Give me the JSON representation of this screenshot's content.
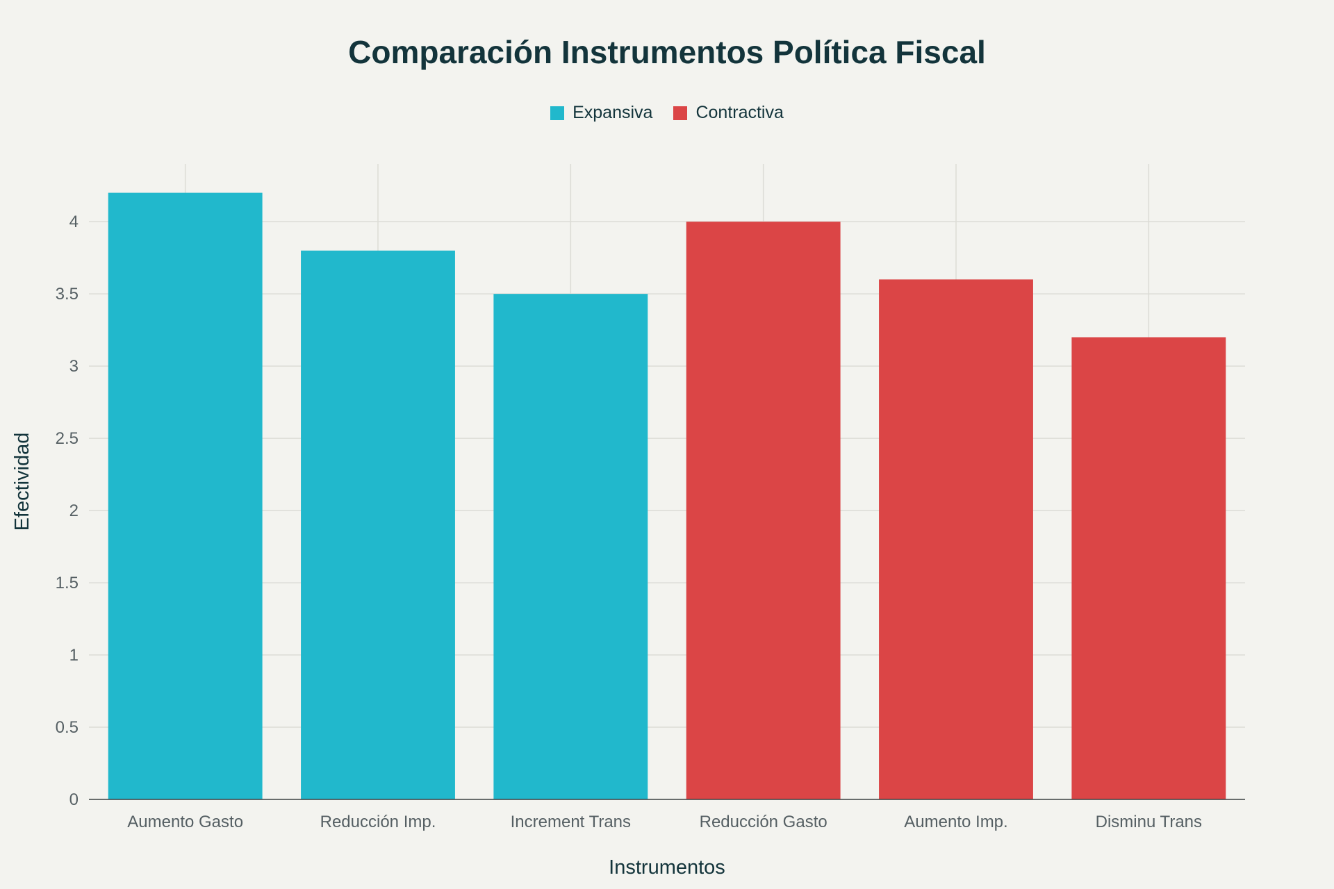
{
  "chart_data": {
    "type": "bar",
    "title": "Comparación Instrumentos Política Fiscal",
    "xlabel": "Instrumentos",
    "ylabel": "Efectividad",
    "categories": [
      "Aumento Gasto",
      "Reducción Imp.",
      "Increment Trans",
      "Reducción Gasto",
      "Aumento Imp.",
      "Disminu Trans"
    ],
    "series": [
      {
        "name": "Expansiva",
        "color": "#21b8cc",
        "values": [
          4.2,
          3.8,
          3.5,
          null,
          null,
          null
        ]
      },
      {
        "name": "Contractiva",
        "color": "#db4546",
        "values": [
          null,
          null,
          null,
          4.0,
          3.6,
          3.2
        ]
      }
    ],
    "ylim": [
      0,
      4.4
    ],
    "yticks": [
      0,
      0.5,
      1,
      1.5,
      2,
      2.5,
      3,
      3.5,
      4
    ],
    "grid": true,
    "legend_position": "top-center"
  }
}
